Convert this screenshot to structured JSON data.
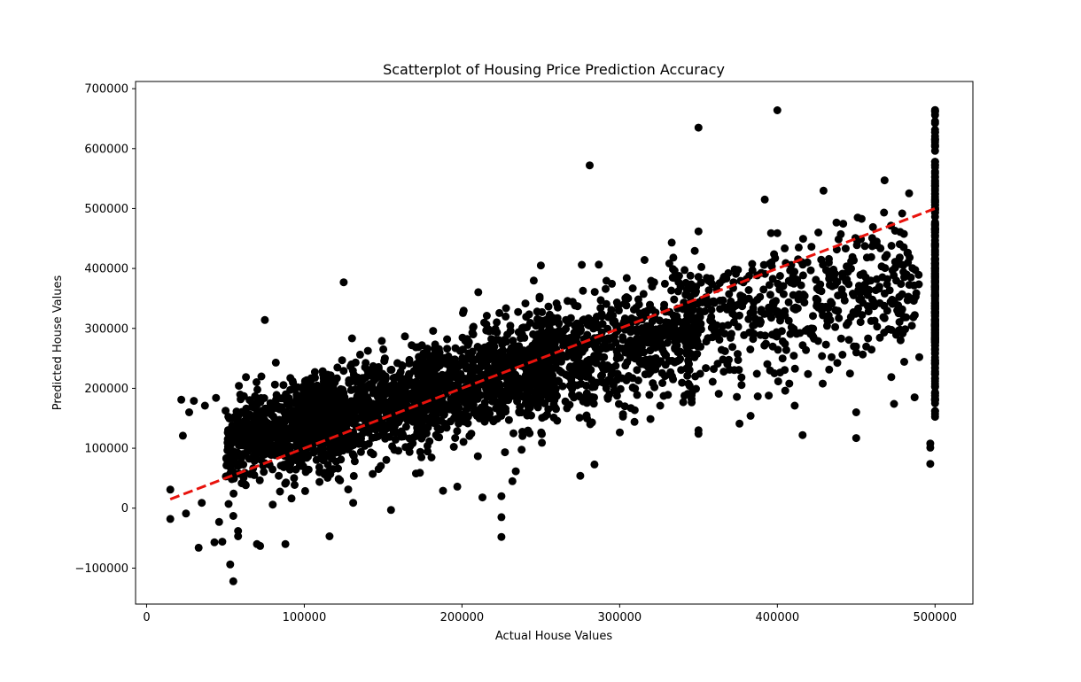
{
  "chart_data": {
    "type": "scatter",
    "title": "Scatterplot of Housing Price Prediction Accuracy",
    "xlabel": "Actual House Values",
    "ylabel": "Predicted House Values",
    "xlim": [
      -7000,
      524000
    ],
    "ylim": [
      -160000,
      712000
    ],
    "xticks": [
      0,
      100000,
      200000,
      300000,
      400000,
      500000
    ],
    "xtick_labels": [
      "0",
      "100000",
      "200000",
      "300000",
      "400000",
      "500000"
    ],
    "yticks": [
      -100000,
      0,
      100000,
      200000,
      300000,
      400000,
      500000,
      600000,
      700000
    ],
    "ytick_labels": [
      "−100000",
      "0",
      "100000",
      "200000",
      "300000",
      "400000",
      "500000",
      "600000",
      "700000"
    ],
    "grid": false,
    "legend": "none",
    "point_color": "#000000",
    "reference_line": {
      "style": "dashed",
      "color": "#e8120c",
      "x": [
        15000,
        500000
      ],
      "y": [
        15000,
        500000
      ]
    },
    "points_note": "Dense cloud of predictions scattered around the identity line, plus a vertical stack of points at the 500000 cap.",
    "series": [
      {
        "points": [
          [
            15000,
            31000
          ],
          [
            15000,
            -18000
          ],
          [
            22000,
            181000
          ],
          [
            23000,
            121000
          ],
          [
            25000,
            -9000
          ],
          [
            27000,
            160000
          ],
          [
            30000,
            179000
          ],
          [
            33000,
            -66000
          ],
          [
            35000,
            9000
          ],
          [
            37000,
            171000
          ],
          [
            43000,
            -57000
          ],
          [
            44000,
            184000
          ],
          [
            46000,
            -23000
          ],
          [
            48000,
            -56000
          ],
          [
            53000,
            -94000
          ],
          [
            55000,
            -122000
          ],
          [
            55000,
            -13000
          ],
          [
            58000,
            -38000
          ],
          [
            58000,
            -47000
          ],
          [
            70000,
            -60000
          ],
          [
            72000,
            -63000
          ],
          [
            75000,
            314000
          ],
          [
            80000,
            6000
          ],
          [
            88000,
            -60000
          ],
          [
            116000,
            -47000
          ],
          [
            125000,
            377000
          ],
          [
            131000,
            9000
          ],
          [
            155000,
            -3000
          ],
          [
            188000,
            29000
          ],
          [
            197000,
            36000
          ],
          [
            213000,
            18000
          ],
          [
            225000,
            -48000
          ],
          [
            225000,
            -15000
          ],
          [
            225000,
            20000
          ],
          [
            232000,
            45000
          ],
          [
            250000,
            405000
          ],
          [
            275000,
            54000
          ],
          [
            281000,
            572000
          ],
          [
            284000,
            73000
          ],
          [
            276000,
            406000
          ],
          [
            334000,
            418000
          ],
          [
            350000,
            635000
          ],
          [
            350000,
            462000
          ],
          [
            350000,
            124000
          ],
          [
            350000,
            130000
          ],
          [
            376000,
            141000
          ],
          [
            383000,
            154000
          ],
          [
            392000,
            515000
          ],
          [
            396000,
            459000
          ],
          [
            400000,
            459000
          ],
          [
            400000,
            664000
          ],
          [
            405000,
            196000
          ],
          [
            411000,
            171000
          ],
          [
            416000,
            122000
          ],
          [
            426000,
            460000
          ],
          [
            450000,
            117000
          ],
          [
            450000,
            160000
          ],
          [
            463000,
            445000
          ],
          [
            468000,
            547000
          ],
          [
            474000,
            174000
          ],
          [
            487000,
            185000
          ],
          [
            490000,
            252000
          ],
          [
            497000,
            74000
          ],
          [
            497000,
            108000
          ],
          [
            497000,
            101000
          ]
        ]
      }
    ]
  }
}
